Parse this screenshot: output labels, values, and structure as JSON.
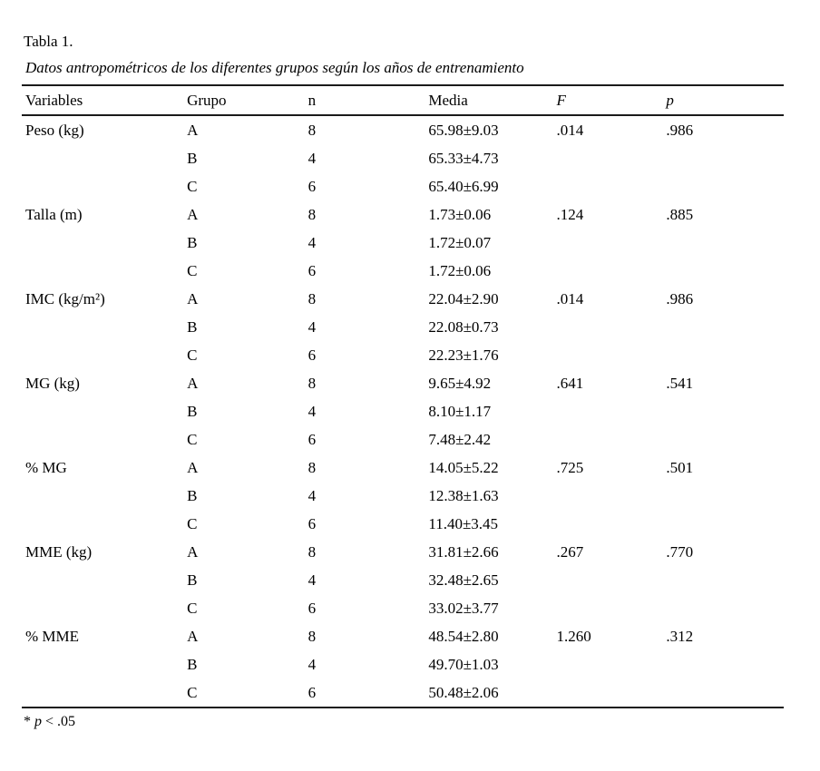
{
  "page": {
    "table_label": "Tabla 1.",
    "table_caption": "Datos antropométricos de los diferentes grupos según los años de entrenamiento",
    "footnote": {
      "star": "* ",
      "symbol": "p",
      "rest": " < .05"
    }
  },
  "table": {
    "columns": [
      {
        "label": "Variables",
        "italic": false
      },
      {
        "label": "Grupo",
        "italic": false
      },
      {
        "label": "n",
        "italic": false
      },
      {
        "label": "Media",
        "italic": false
      },
      {
        "label": "F",
        "italic": true
      },
      {
        "label": "p",
        "italic": true
      }
    ],
    "rows": [
      {
        "variable": "Peso (kg)",
        "grupo": "A",
        "n": "8",
        "media": "65.98±9.03",
        "f": ".014",
        "p": ".986"
      },
      {
        "variable": "",
        "grupo": "B",
        "n": "4",
        "media": "65.33±4.73",
        "f": "",
        "p": ""
      },
      {
        "variable": "",
        "grupo": "C",
        "n": "6",
        "media": "65.40±6.99",
        "f": "",
        "p": ""
      },
      {
        "variable": "Talla (m)",
        "grupo": "A",
        "n": "8",
        "media": "1.73±0.06",
        "f": ".124",
        "p": ".885"
      },
      {
        "variable": "",
        "grupo": "B",
        "n": "4",
        "media": "1.72±0.07",
        "f": "",
        "p": ""
      },
      {
        "variable": "",
        "grupo": "C",
        "n": "6",
        "media": "1.72±0.06",
        "f": "",
        "p": ""
      },
      {
        "variable": "IMC (kg/m²)",
        "grupo": "A",
        "n": "8",
        "media": "22.04±2.90",
        "f": ".014",
        "p": ".986"
      },
      {
        "variable": "",
        "grupo": "B",
        "n": "4",
        "media": "22.08±0.73",
        "f": "",
        "p": ""
      },
      {
        "variable": "",
        "grupo": "C",
        "n": "6",
        "media": "22.23±1.76",
        "f": "",
        "p": ""
      },
      {
        "variable": "MG (kg)",
        "grupo": "A",
        "n": "8",
        "media": "9.65±4.92",
        "f": ".641",
        "p": ".541"
      },
      {
        "variable": "",
        "grupo": "B",
        "n": "4",
        "media": "8.10±1.17",
        "f": "",
        "p": ""
      },
      {
        "variable": "",
        "grupo": "C",
        "n": "6",
        "media": "7.48±2.42",
        "f": "",
        "p": ""
      },
      {
        "variable": "% MG",
        "grupo": "A",
        "n": "8",
        "media": "14.05±5.22",
        "f": ".725",
        "p": ".501"
      },
      {
        "variable": "",
        "grupo": "B",
        "n": "4",
        "media": "12.38±1.63",
        "f": "",
        "p": ""
      },
      {
        "variable": "",
        "grupo": "C",
        "n": "6",
        "media": "11.40±3.45",
        "f": "",
        "p": ""
      },
      {
        "variable": "MME (kg)",
        "grupo": "A",
        "n": "8",
        "media": "31.81±2.66",
        "f": ".267",
        "p": ".770"
      },
      {
        "variable": "",
        "grupo": "B",
        "n": "4",
        "media": "32.48±2.65",
        "f": "",
        "p": ""
      },
      {
        "variable": "",
        "grupo": "C",
        "n": "6",
        "media": "33.02±3.77",
        "f": "",
        "p": ""
      },
      {
        "variable": "% MME",
        "grupo": "A",
        "n": "8",
        "media": "48.54±2.80",
        "f": "1.260",
        "p": ".312"
      },
      {
        "variable": "",
        "grupo": "B",
        "n": "4",
        "media": "49.70±1.03",
        "f": "",
        "p": ""
      },
      {
        "variable": "",
        "grupo": "C",
        "n": "6",
        "media": "50.48±2.06",
        "f": "",
        "p": ""
      }
    ]
  }
}
